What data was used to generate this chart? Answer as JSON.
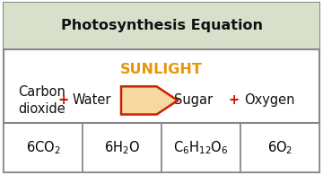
{
  "title": "Photosynthesis Equation",
  "title_bg": "#d8e0cc",
  "title_fontsize": 11.5,
  "sunlight_text": "SUNLIGHT",
  "sunlight_color": "#e8960a",
  "sunlight_fontsize": 11.5,
  "reactant1_line1": "Carbon",
  "reactant1_line2": "dioxide",
  "plus_color": "#cc1100",
  "reactant2": "Water",
  "arrow_fill": "#f5d9a0",
  "arrow_edge": "#cc2200",
  "product1": "Sugar",
  "product2": "Oxygen",
  "box_edge": "#888888",
  "outer_edge": "#888888",
  "main_text_color": "#111111",
  "text_fontsize": 10.5,
  "formula_fontsize": 10.5,
  "bg_color": "#ffffff"
}
